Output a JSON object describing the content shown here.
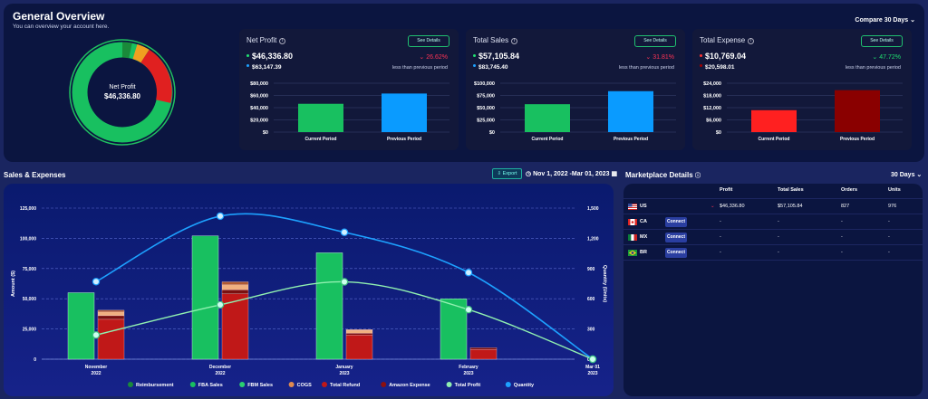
{
  "overview": {
    "title": "General Overview",
    "subtitle": "You can overview your account here.",
    "compare": "Compare 30 Days",
    "donut": {
      "label": "Net Profit",
      "value": "$46,336.80"
    }
  },
  "cards": [
    {
      "title": "Net Profit",
      "button": "See Details",
      "current": "$46,336.80",
      "previous": "$63,147.39",
      "pct": "26.62%",
      "pct_dir": "down",
      "pct_color": "#ff3355",
      "less": "less than previous period",
      "cur_dot": "#20e070",
      "prev_dot": "#1da1ff",
      "chart_data": {
        "type": "bar",
        "categories": [
          "Current Period",
          "Previous Period"
        ],
        "values": [
          46336.8,
          63147.39
        ],
        "yticks": [
          "$80,000",
          "$60,000",
          "$40,000",
          "$20,000",
          "$0"
        ],
        "ylim": [
          0,
          80000
        ],
        "colors": [
          "#18c060",
          "#0a9bff"
        ]
      }
    },
    {
      "title": "Total Sales",
      "button": "See Details",
      "current": "$57,105.84",
      "previous": "$83,745.40",
      "pct": "31.81%",
      "pct_dir": "down",
      "pct_color": "#ff3355",
      "less": "less than previous period",
      "cur_dot": "#20e070",
      "prev_dot": "#1da1ff",
      "chart_data": {
        "type": "bar",
        "categories": [
          "Current Period",
          "Previous Period"
        ],
        "values": [
          57105.84,
          83745.4
        ],
        "yticks": [
          "$100,000",
          "$75,000",
          "$50,000",
          "$25,000",
          "$0"
        ],
        "ylim": [
          0,
          100000
        ],
        "colors": [
          "#18c060",
          "#0a9bff"
        ]
      }
    },
    {
      "title": "Total Expense",
      "button": "See Details",
      "current": "$10,769.04",
      "previous": "$20,598.01",
      "pct": "47.72%",
      "pct_dir": "down",
      "pct_color": "#20e070",
      "less": "less than previous period",
      "cur_dot": "#ff3333",
      "prev_dot": "#a00000",
      "chart_data": {
        "type": "bar",
        "categories": [
          "Current Period",
          "Previous Period"
        ],
        "values": [
          10769.04,
          20598.01
        ],
        "yticks": [
          "$24,000",
          "$18,000",
          "$12,000",
          "$6,000",
          "$0"
        ],
        "ylim": [
          0,
          24000
        ],
        "colors": [
          "#ff2020",
          "#8a0000"
        ]
      }
    }
  ],
  "sales": {
    "title": "Sales & Expenses",
    "export": "Export",
    "daterange": "Nov 1, 2022 -Mar 01, 2023",
    "chart_data": {
      "type": "bar",
      "categories": [
        [
          "November",
          "2022"
        ],
        [
          "December",
          "2022"
        ],
        [
          "January",
          "2023"
        ],
        [
          "February",
          "2023"
        ],
        [
          "Mar 01",
          "2023"
        ]
      ],
      "ylabel": "Amount ($)",
      "y2label": "Quantity (Units)",
      "yticks": [
        "125,000",
        "100,000",
        "75,000",
        "50,000",
        "25,000",
        "0"
      ],
      "y2ticks": [
        "1,500",
        "1,200",
        "900",
        "600",
        "300",
        "0"
      ],
      "ylim": [
        0,
        125000
      ],
      "y2lim": [
        0,
        1500
      ],
      "fba_sales": [
        55000,
        102000,
        88000,
        50000,
        0
      ],
      "expense_stack": [
        [
          {
            "v": 33000,
            "c": "#c01818"
          },
          {
            "v": 3000,
            "c": "#7a1010"
          },
          {
            "v": 3000,
            "c": "#f0b080"
          },
          {
            "v": 1500,
            "c": "#b05a30"
          }
        ],
        [
          {
            "v": 54000,
            "c": "#c01818"
          },
          {
            "v": 3500,
            "c": "#7a1010"
          },
          {
            "v": 4000,
            "c": "#f0b080"
          },
          {
            "v": 2500,
            "c": "#b05a30"
          }
        ],
        [
          {
            "v": 20000,
            "c": "#c01818"
          },
          {
            "v": 1500,
            "c": "#7a1010"
          },
          {
            "v": 2500,
            "c": "#f0b080"
          },
          {
            "v": 500,
            "c": "#b05a30"
          }
        ],
        [
          {
            "v": 8000,
            "c": "#c01818"
          },
          {
            "v": 1500,
            "c": "#7a1010"
          },
          {
            "v": 0,
            "c": "#f0b080"
          },
          {
            "v": 0,
            "c": "#b05a30"
          }
        ],
        [
          {
            "v": 0,
            "c": "#c01818"
          },
          {
            "v": 0,
            "c": "#7a1010"
          },
          {
            "v": 0,
            "c": "#f0b080"
          },
          {
            "v": 0,
            "c": "#b05a30"
          }
        ]
      ],
      "total_profit": [
        20000,
        45000,
        64000,
        41000,
        0
      ],
      "quantity": [
        770,
        1420,
        1260,
        860,
        0
      ],
      "legend": [
        {
          "name": "Reimbursement",
          "color": "#1a8a3a"
        },
        {
          "name": "FBA Sales",
          "color": "#18c060"
        },
        {
          "name": "FBM Sales",
          "color": "#2ad070"
        },
        {
          "name": "COGS",
          "color": "#e08a50"
        },
        {
          "name": "Total Refund",
          "color": "#c01818"
        },
        {
          "name": "Amazon Expense",
          "color": "#8a1010"
        },
        {
          "name": "Total Profit",
          "color": "#90f0b0"
        },
        {
          "name": "Quantity",
          "color": "#1da1ff"
        }
      ]
    }
  },
  "marketplace": {
    "title": "Marketplace Details",
    "days": "30 Days",
    "headers": [
      "Profit",
      "Total Sales",
      "Orders",
      "Units"
    ],
    "rows": [
      {
        "code": "US",
        "connect": "",
        "profit": "$46,336.80",
        "sales": "$57,105.84",
        "orders": "827",
        "units": "976"
      },
      {
        "code": "CA",
        "connect": "Connect",
        "profit": "-",
        "sales": "-",
        "orders": "-",
        "units": "-"
      },
      {
        "code": "MX",
        "connect": "Connect",
        "profit": "-",
        "sales": "-",
        "orders": "-",
        "units": "-"
      },
      {
        "code": "BR",
        "connect": "Connect",
        "profit": "-",
        "sales": "-",
        "orders": "-",
        "units": "-"
      }
    ]
  }
}
